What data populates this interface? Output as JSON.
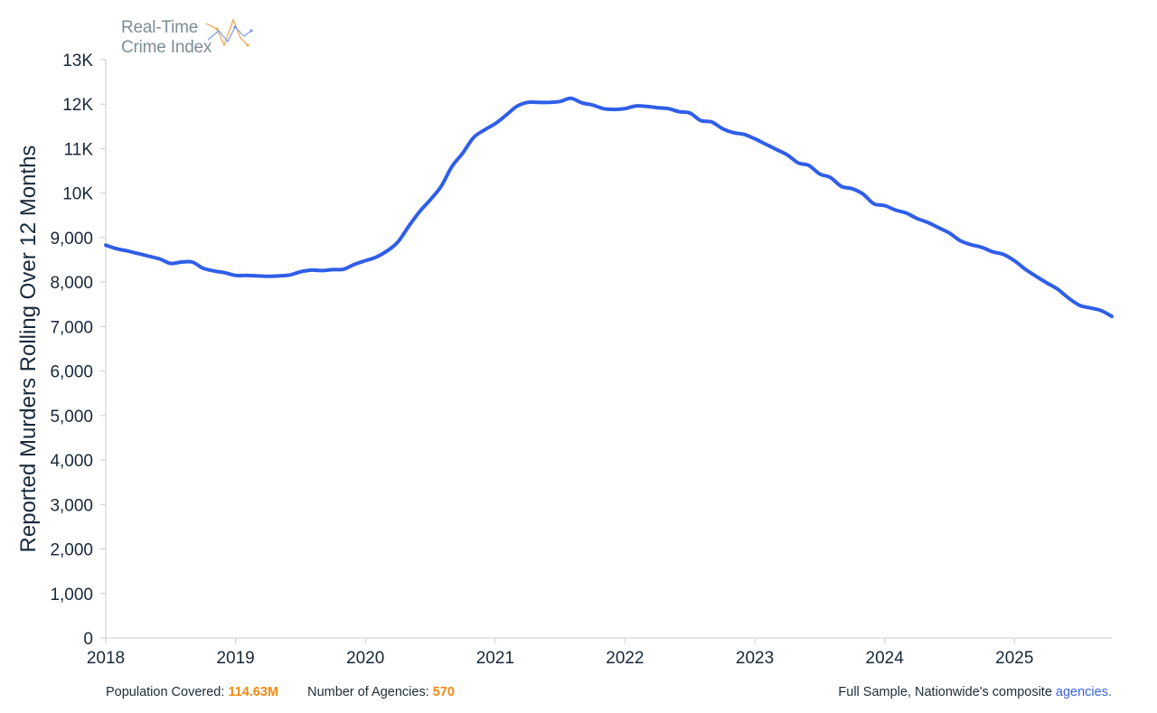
{
  "logo": {
    "line1": "Real-Time",
    "line2": "Crime Index",
    "icon": "zigzag-line-icon"
  },
  "footer": {
    "population_label": "Population Covered:",
    "population_value": "114.63M",
    "agencies_label": "Number of Agencies:",
    "agencies_value": "570",
    "sample_text": "Full Sample, Nationwide's composite",
    "agencies_link": "agencies."
  },
  "colors": {
    "line": "#2f5ee8",
    "accent_orange": "#f28a12",
    "link_blue": "#3a63e0",
    "axis": "#c9cdd1",
    "text": "#17283a"
  },
  "chart_data": {
    "type": "line",
    "title": "",
    "xlabel": "",
    "ylabel": "Reported Murders Rolling Over 12 Months",
    "xlim": [
      2018.0,
      2025.75
    ],
    "ylim": [
      0,
      13000
    ],
    "x_ticks": [
      2018,
      2019,
      2020,
      2021,
      2022,
      2023,
      2024,
      2025
    ],
    "x_tick_labels": [
      "2018",
      "2019",
      "2020",
      "2021",
      "2022",
      "2023",
      "2024",
      "2025"
    ],
    "y_ticks": [
      0,
      1000,
      2000,
      3000,
      4000,
      5000,
      6000,
      7000,
      8000,
      9000,
      10000,
      11000,
      12000,
      13000
    ],
    "y_tick_labels": [
      "0",
      "1,000",
      "2,000",
      "3,000",
      "4,000",
      "5,000",
      "6,000",
      "7,000",
      "8,000",
      "9,000",
      "10K",
      "11K",
      "12K",
      "13K"
    ],
    "grid": false,
    "legend": "none",
    "series": [
      {
        "x": [
          2018.0,
          2018.083,
          2018.167,
          2018.25,
          2018.333,
          2018.417,
          2018.5,
          2018.583,
          2018.667,
          2018.75,
          2018.833,
          2018.917,
          2019.0,
          2019.083,
          2019.167,
          2019.25,
          2019.333,
          2019.417,
          2019.5,
          2019.583,
          2019.667,
          2019.75,
          2019.833,
          2019.917,
          2020.0,
          2020.083,
          2020.167,
          2020.25,
          2020.333,
          2020.417,
          2020.5,
          2020.583,
          2020.667,
          2020.75,
          2020.833,
          2020.917,
          2021.0,
          2021.083,
          2021.167,
          2021.25,
          2021.333,
          2021.417,
          2021.5,
          2021.583,
          2021.667,
          2021.75,
          2021.833,
          2021.917,
          2022.0,
          2022.083,
          2022.167,
          2022.25,
          2022.333,
          2022.417,
          2022.5,
          2022.583,
          2022.667,
          2022.75,
          2022.833,
          2022.917,
          2023.0,
          2023.083,
          2023.167,
          2023.25,
          2023.333,
          2023.417,
          2023.5,
          2023.583,
          2023.667,
          2023.75,
          2023.833,
          2023.917,
          2024.0,
          2024.083,
          2024.167,
          2024.25,
          2024.333,
          2024.417,
          2024.5,
          2024.583,
          2024.667,
          2024.75,
          2024.833,
          2024.917,
          2025.0,
          2025.083,
          2025.167,
          2025.25,
          2025.333,
          2025.417,
          2025.5,
          2025.583,
          2025.667,
          2025.75
        ],
        "values": [
          8830,
          8750,
          8700,
          8640,
          8580,
          8520,
          8420,
          8450,
          8450,
          8310,
          8250,
          8210,
          8150,
          8150,
          8140,
          8130,
          8140,
          8160,
          8230,
          8270,
          8260,
          8280,
          8290,
          8400,
          8480,
          8560,
          8700,
          8900,
          9250,
          9580,
          9850,
          10150,
          10600,
          10900,
          11250,
          11420,
          11560,
          11750,
          11950,
          12040,
          12040,
          12040,
          12060,
          12130,
          12030,
          11980,
          11900,
          11880,
          11900,
          11960,
          11950,
          11920,
          11900,
          11830,
          11800,
          11630,
          11600,
          11450,
          11360,
          11320,
          11220,
          11100,
          10980,
          10860,
          10680,
          10620,
          10430,
          10350,
          10150,
          10100,
          9980,
          9760,
          9720,
          9620,
          9550,
          9430,
          9340,
          9220,
          9100,
          8930,
          8840,
          8780,
          8680,
          8620,
          8480,
          8290,
          8130,
          7980,
          7840,
          7640,
          7480,
          7420,
          7360,
          7230
        ]
      }
    ]
  }
}
